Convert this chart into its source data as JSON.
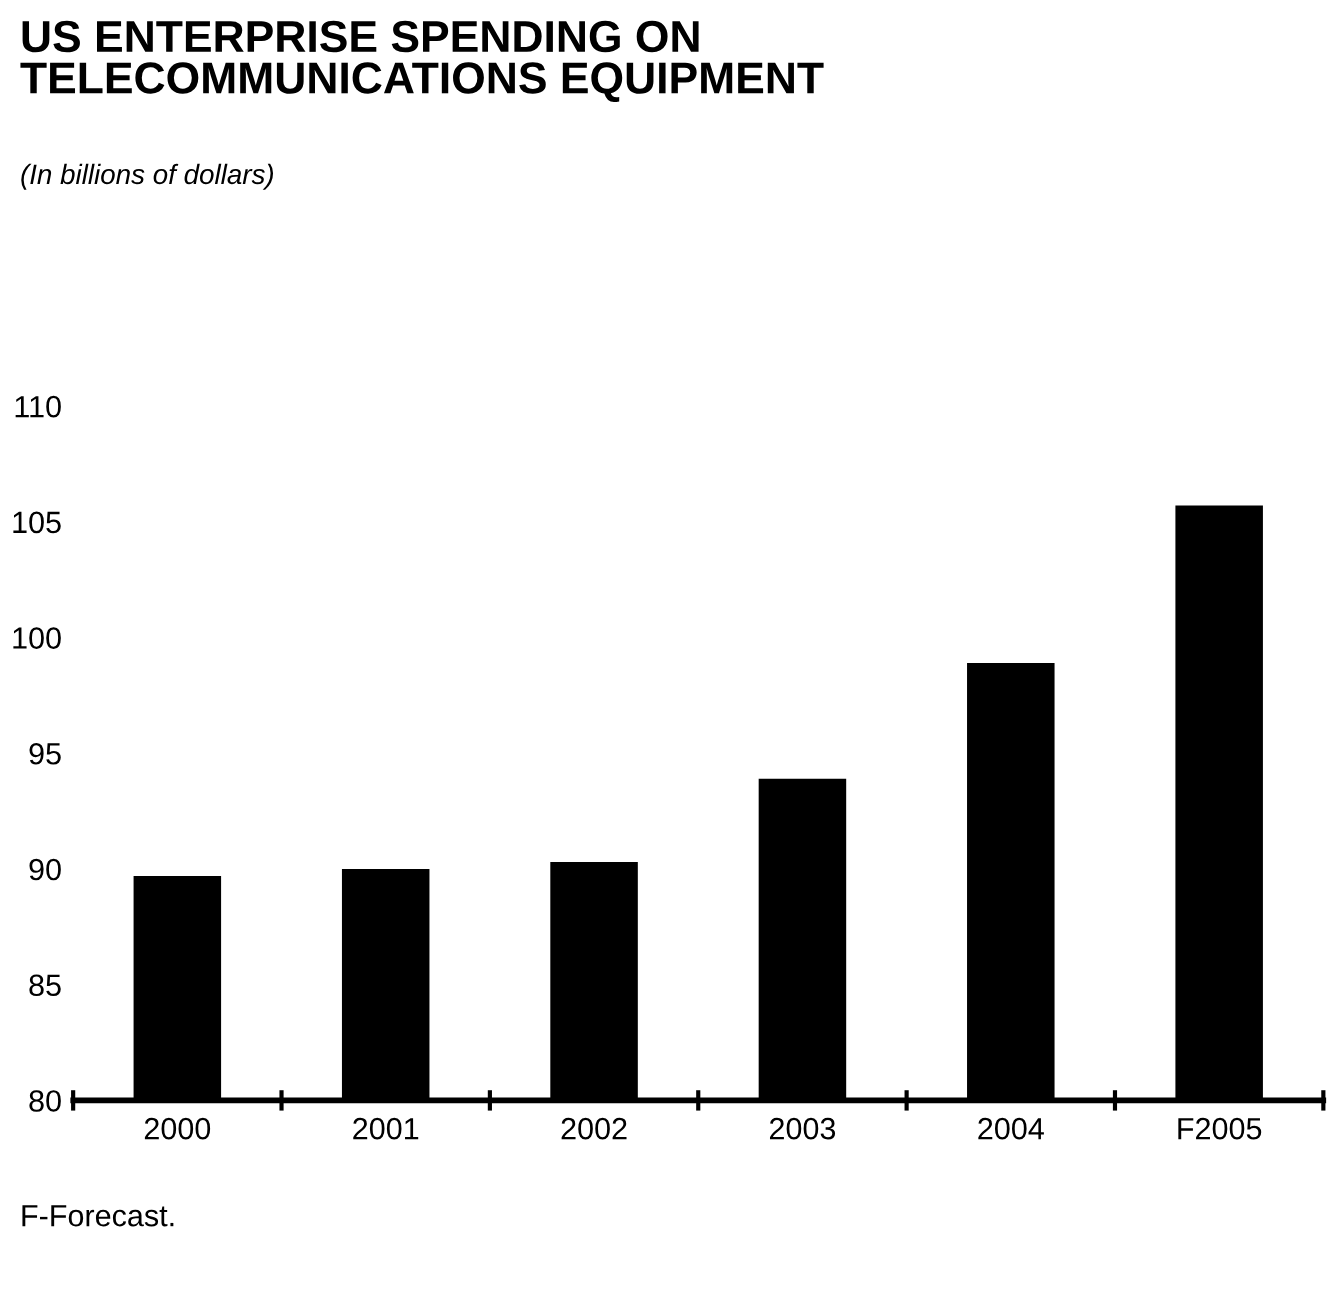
{
  "chart_data": {
    "type": "bar",
    "title": "US ENTERPRISE SPENDING ON\nTELECOMMUNICATIONS EQUIPMENT",
    "subtitle": "(In billions of dollars)",
    "categories": [
      "2000",
      "2001",
      "2002",
      "2003",
      "2004",
      "F2005"
    ],
    "values": [
      89.7,
      90.0,
      90.3,
      93.9,
      98.9,
      105.7
    ],
    "color": "#000000",
    "ylim": [
      80,
      110
    ],
    "yticks": [
      80,
      85,
      90,
      95,
      100,
      105,
      110
    ],
    "grid": false,
    "annotations": [
      "F-Forecast."
    ]
  }
}
